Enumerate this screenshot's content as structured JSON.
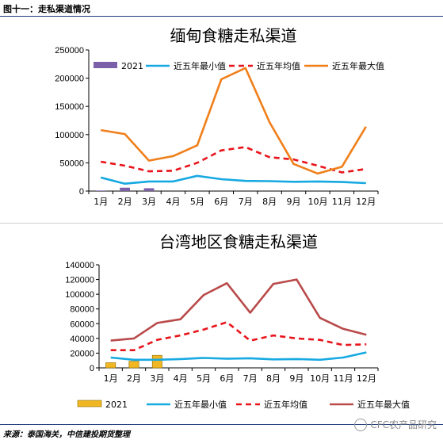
{
  "figure": {
    "title": "图十一：走私渠道情况",
    "source": "来源：泰国海关，中信建投期货整理",
    "watermark": "CFC农产品研究"
  },
  "chart_data": [
    {
      "type": "bar+line",
      "title": "缅甸食糖走私渠道",
      "categories": [
        "1月",
        "2月",
        "3月",
        "4月",
        "5月",
        "6月",
        "7月",
        "8月",
        "9月",
        "10月",
        "11月",
        "12月"
      ],
      "ylim": [
        0,
        250000
      ],
      "yticks": [
        0,
        50000,
        100000,
        150000,
        200000,
        250000
      ],
      "legend_position": "top",
      "bars": {
        "name": "2021",
        "color": "#7b5fa8",
        "values": [
          1000,
          6000,
          5000,
          null,
          null,
          null,
          null,
          null,
          null,
          null,
          null,
          null
        ]
      },
      "series": [
        {
          "name": "近五年最小值",
          "color": "#17a9e1",
          "style": "solid",
          "values": [
            24000,
            13000,
            17000,
            17000,
            27000,
            21000,
            18000,
            17500,
            16500,
            17000,
            16000,
            14000
          ]
        },
        {
          "name": "近五年均值",
          "color": "#e8141b",
          "style": "dashed",
          "values": [
            52000,
            45000,
            35000,
            36000,
            50000,
            72000,
            78000,
            60000,
            56000,
            45000,
            33000,
            39000
          ]
        },
        {
          "name": "近五年最大值",
          "color": "#f07f1a",
          "style": "solid",
          "values": [
            108000,
            101000,
            54000,
            62000,
            81000,
            198000,
            218000,
            122000,
            48000,
            31000,
            43000,
            114000
          ]
        }
      ]
    },
    {
      "type": "bar+line",
      "title": "台湾地区食糖走私渠道",
      "categories": [
        "1月",
        "2月",
        "3月",
        "4月",
        "5月",
        "6月",
        "7月",
        "8月",
        "9月",
        "10月",
        "11月",
        "12月"
      ],
      "ylim": [
        0,
        140000
      ],
      "yticks": [
        0,
        20000,
        40000,
        60000,
        80000,
        100000,
        120000,
        140000
      ],
      "legend_position": "bottom",
      "bars": {
        "name": "2021",
        "color": "#f0b722",
        "values": [
          7000,
          9000,
          17000,
          null,
          null,
          null,
          null,
          null,
          null,
          null,
          null,
          null
        ]
      },
      "series": [
        {
          "name": "近五年最小值",
          "color": "#17a9e1",
          "style": "solid",
          "values": [
            14000,
            11000,
            11000,
            12000,
            13500,
            12500,
            13000,
            11500,
            12000,
            11000,
            14000,
            21000
          ]
        },
        {
          "name": "近五年均值",
          "color": "#e8141b",
          "style": "dashed",
          "values": [
            24000,
            24000,
            38000,
            44000,
            52000,
            62000,
            37000,
            44000,
            40000,
            38000,
            31000,
            32000
          ]
        },
        {
          "name": "近五年最大值",
          "color": "#b94a4a",
          "style": "solid",
          "values": [
            37000,
            40000,
            61000,
            66000,
            99000,
            115000,
            75000,
            114000,
            120000,
            68000,
            53000,
            45000
          ]
        }
      ]
    }
  ]
}
